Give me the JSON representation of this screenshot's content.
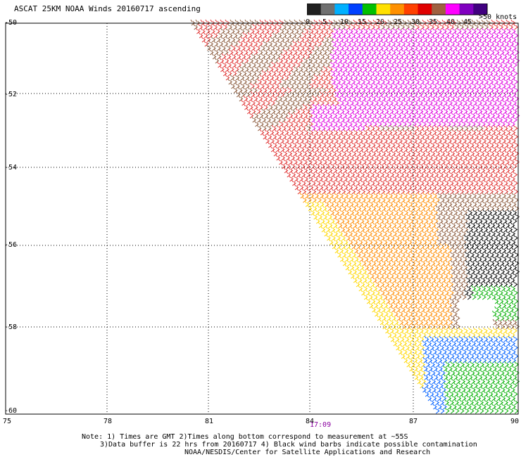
{
  "title": "ASCAT 25KM NOAA Winds 20160717 ascending",
  "colorbar": {
    "ticks": [
      "0",
      "5",
      "10",
      "15",
      "20",
      "25",
      "30",
      "35",
      "40",
      "45",
      ">50 knots"
    ],
    "colors": [
      "#202020",
      "#707070",
      "#00b0ff",
      "#0040ff",
      "#00c000",
      "#ffe000",
      "#ff9000",
      "#ff4000",
      "#e00000",
      "#a06040",
      "#ff00ff",
      "#8000c0",
      "#400080"
    ]
  },
  "map": {
    "lat_labels": [
      "-50",
      "-52",
      "-54",
      "-56",
      "-58",
      "-60"
    ],
    "lon_labels": [
      "75",
      "78",
      "81",
      "84",
      "87",
      "90"
    ],
    "time_label": "17:09",
    "region_colors": {
      "brown": "#8b5a3c",
      "red": "#e03030",
      "magenta": "#e000e0",
      "orange": "#ff8c00",
      "yellow": "#ffd700",
      "green": "#00b000",
      "blue": "#0060ff",
      "black": "#000000"
    }
  },
  "notes": {
    "line1": "Note: 1) Times are GMT 2)Times along bottom correspond to measurement at ~55S",
    "line2": "3)Data buffer is 22 hrs from 20160717 4) Black wind barbs indicate possible contamination",
    "line3": "NOAA/NESDIS/Center for Satellite Applications and Research"
  }
}
